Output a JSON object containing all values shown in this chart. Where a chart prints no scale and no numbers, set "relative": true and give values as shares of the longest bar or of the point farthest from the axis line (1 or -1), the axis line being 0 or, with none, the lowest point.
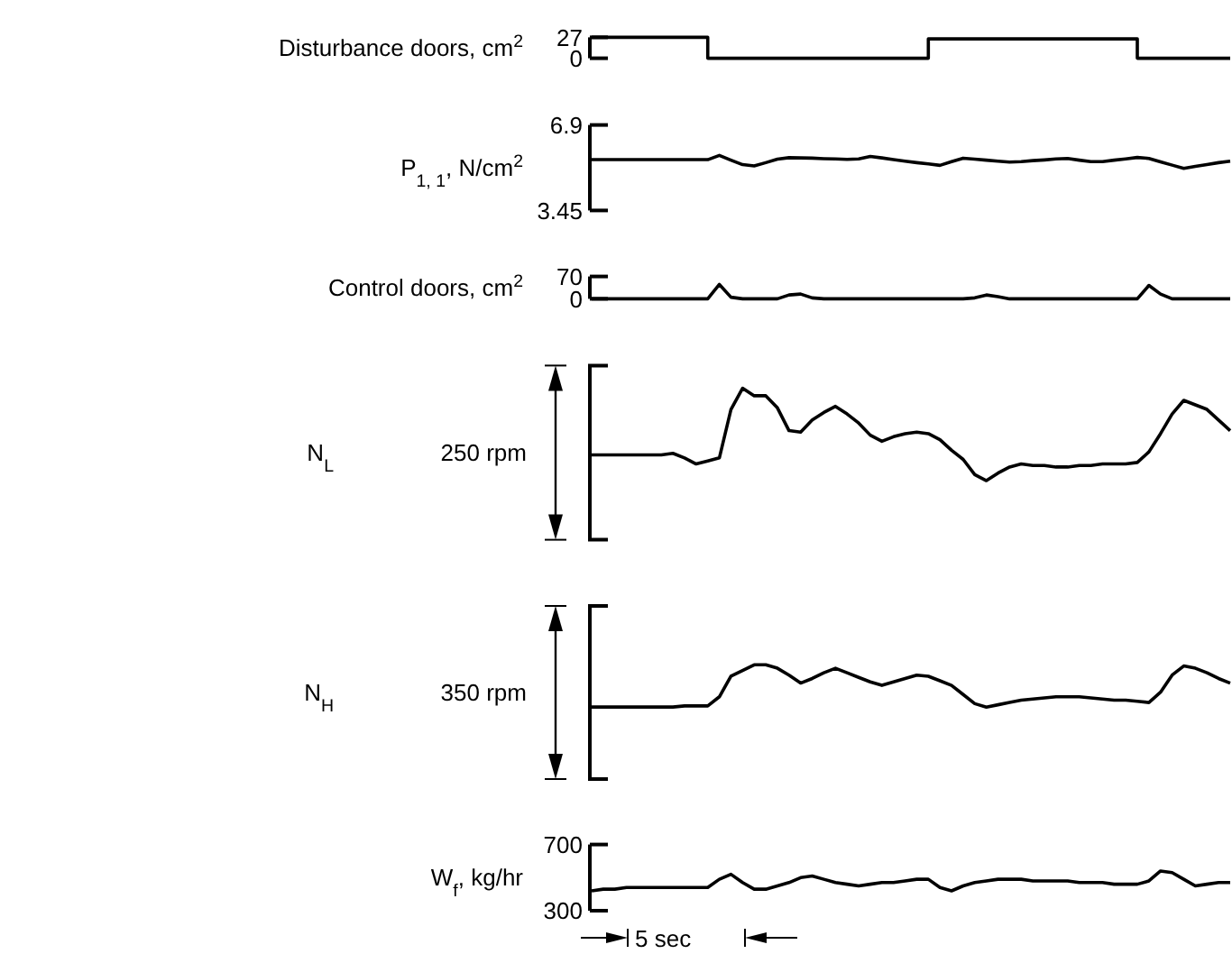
{
  "chart_data": [
    {
      "type": "step",
      "ylabel": "Disturbance doors, cm$^{2}$",
      "color": "#000000",
      "ylim": [
        0,
        27
      ],
      "yticks": [
        0,
        27
      ],
      "tick_labels": "y",
      "categories": [
        null,
        null,
        null,
        null,
        null,
        null,
        null,
        null,
        null,
        null,
        null,
        null,
        null,
        null,
        null,
        null,
        null,
        null,
        null,
        null,
        null,
        null,
        null,
        null,
        null,
        null,
        null,
        null,
        null,
        null,
        null,
        null,
        null,
        null,
        null,
        null,
        null,
        null,
        null,
        null,
        null,
        null,
        null,
        null,
        null,
        null,
        null,
        null,
        null,
        null,
        null,
        null,
        null,
        null,
        null,
        null
      ],
      "values": [
        27,
        27,
        27,
        27,
        27,
        27,
        27,
        27,
        27,
        27,
        0,
        0,
        0,
        0,
        0,
        0,
        0,
        0,
        0,
        0,
        0,
        0,
        0,
        0,
        0,
        0,
        0,
        0,
        0,
        25,
        25,
        25,
        25,
        25,
        25,
        25,
        25,
        25,
        25,
        25,
        25,
        25,
        25,
        25,
        25,
        25,
        25,
        0,
        0,
        0,
        0,
        0,
        0,
        0,
        0,
        0
      ]
    },
    {
      "type": "line",
      "ylabel": "P$_{1, 1}$, N/cm$^{2}$",
      "color": "#000000",
      "ylim": [
        3.45,
        6.9
      ],
      "yticks": [
        3.45,
        6.9
      ],
      "tick_labels": "y",
      "categories": [
        null,
        null,
        null,
        null,
        null,
        null,
        null,
        null,
        null,
        null,
        null,
        null,
        null,
        null,
        null,
        null,
        null,
        null,
        null,
        null,
        null,
        null,
        null,
        null,
        null,
        null,
        null,
        null,
        null,
        null,
        null,
        null,
        null,
        null,
        null,
        null,
        null,
        null,
        null,
        null,
        null,
        null,
        null,
        null,
        null,
        null,
        null,
        null,
        null,
        null,
        null,
        null,
        null,
        null,
        null,
        null
      ],
      "values": [
        5.5,
        5.5,
        5.5,
        5.5,
        5.5,
        5.5,
        5.5,
        5.5,
        5.5,
        5.5,
        5.5,
        5.67,
        5.48,
        5.3,
        5.25,
        5.38,
        5.52,
        5.58,
        5.57,
        5.56,
        5.54,
        5.53,
        5.51,
        5.53,
        5.63,
        5.57,
        5.5,
        5.44,
        5.38,
        5.33,
        5.27,
        5.42,
        5.56,
        5.52,
        5.48,
        5.44,
        5.4,
        5.42,
        5.46,
        5.49,
        5.53,
        5.55,
        5.48,
        5.42,
        5.42,
        5.48,
        5.53,
        5.59,
        5.55,
        5.41,
        5.28,
        5.15,
        5.23,
        5.3,
        5.38,
        5.44
      ]
    },
    {
      "type": "line",
      "ylabel": "Control doors, cm$^{2}$",
      "color": "#000000",
      "ylim": [
        0,
        70
      ],
      "yticks": [
        0,
        70
      ],
      "tick_labels": "y",
      "categories": [
        null,
        null,
        null,
        null,
        null,
        null,
        null,
        null,
        null,
        null,
        null,
        null,
        null,
        null,
        null,
        null,
        null,
        null,
        null,
        null,
        null,
        null,
        null,
        null,
        null,
        null,
        null,
        null,
        null,
        null,
        null,
        null,
        null,
        null,
        null,
        null,
        null,
        null,
        null,
        null,
        null,
        null,
        null,
        null,
        null,
        null,
        null,
        null,
        null,
        null,
        null,
        null,
        null,
        null,
        null,
        null
      ],
      "values": [
        0,
        0,
        0,
        0,
        0,
        0,
        0,
        0,
        0,
        0,
        0,
        45,
        5,
        0,
        0,
        0,
        0,
        12,
        15,
        3,
        0,
        0,
        0,
        0,
        0,
        0,
        0,
        0,
        0,
        0,
        0,
        0,
        0,
        3,
        12,
        7,
        0,
        0,
        0,
        0,
        0,
        0,
        0,
        0,
        0,
        0,
        0,
        0,
        42,
        15,
        0,
        0,
        0,
        0,
        0,
        0
      ]
    },
    {
      "type": "line",
      "ylabel": "N$_{L}$",
      "color": "#000000",
      "relative": true,
      "tick_labels": false,
      "annotations": [
        "250 rpm"
      ],
      "categories": [
        null,
        null,
        null,
        null,
        null,
        null,
        null,
        null,
        null,
        null,
        null,
        null,
        null,
        null,
        null,
        null,
        null,
        null,
        null,
        null,
        null,
        null,
        null,
        null,
        null,
        null,
        null,
        null,
        null,
        null,
        null,
        null,
        null,
        null,
        null,
        null,
        null,
        null,
        null,
        null,
        null,
        null,
        null,
        null,
        null,
        null,
        null,
        null,
        null,
        null,
        null,
        null,
        null,
        null,
        null,
        null
      ],
      "values": [
        0.56,
        0.56,
        0.56,
        0.56,
        0.56,
        0.56,
        0.56,
        0.57,
        0.54,
        0.5,
        0.52,
        0.54,
        0.86,
        1,
        0.95,
        0.95,
        0.87,
        0.72,
        0.71,
        0.79,
        0.84,
        0.88,
        0.83,
        0.77,
        0.69,
        0.65,
        0.68,
        0.7,
        0.71,
        0.7,
        0.66,
        0.59,
        0.53,
        0.43,
        0.39,
        0.44,
        0.48,
        0.5,
        0.49,
        0.49,
        0.48,
        0.48,
        0.49,
        0.49,
        0.5,
        0.5,
        0.5,
        0.51,
        0.58,
        0.7,
        0.83,
        0.92,
        0.89,
        0.86,
        0.79,
        0.72
      ]
    },
    {
      "type": "line",
      "ylabel": "N$_{H}$",
      "color": "#000000",
      "relative": true,
      "tick_labels": false,
      "annotations": [
        "350 rpm"
      ],
      "categories": [
        null,
        null,
        null,
        null,
        null,
        null,
        null,
        null,
        null,
        null,
        null,
        null,
        null,
        null,
        null,
        null,
        null,
        null,
        null,
        null,
        null,
        null,
        null,
        null,
        null,
        null,
        null,
        null,
        null,
        null,
        null,
        null,
        null,
        null,
        null,
        null,
        null,
        null,
        null,
        null,
        null,
        null,
        null,
        null,
        null,
        null,
        null,
        null,
        null,
        null,
        null,
        null,
        null,
        null,
        null,
        null
      ],
      "values": [
        0.63,
        0.63,
        0.63,
        0.63,
        0.63,
        0.63,
        0.63,
        0.63,
        0.64,
        0.64,
        0.64,
        0.72,
        0.9,
        0.95,
        1,
        1,
        0.97,
        0.91,
        0.84,
        0.88,
        0.93,
        0.97,
        0.93,
        0.89,
        0.85,
        0.82,
        0.85,
        0.88,
        0.91,
        0.9,
        0.86,
        0.82,
        0.74,
        0.66,
        0.63,
        0.65,
        0.67,
        0.69,
        0.7,
        0.71,
        0.72,
        0.72,
        0.72,
        0.71,
        0.7,
        0.69,
        0.69,
        0.68,
        0.67,
        0.76,
        0.91,
        0.99,
        0.97,
        0.93,
        0.88,
        0.84
      ]
    },
    {
      "type": "line",
      "ylabel": "W$_{f}$, kg/hr",
      "color": "#000000",
      "ylim": [
        300,
        700
      ],
      "yticks": [
        300,
        700
      ],
      "tick_labels": "y",
      "annotations": [
        "5 sec"
      ],
      "categories": [
        null,
        null,
        null,
        null,
        null,
        null,
        null,
        null,
        null,
        null,
        null,
        null,
        null,
        null,
        null,
        null,
        null,
        null,
        null,
        null,
        null,
        null,
        null,
        null,
        null,
        null,
        null,
        null,
        null,
        null,
        null,
        null,
        null,
        null,
        null,
        null,
        null,
        null,
        null,
        null,
        null,
        null,
        null,
        null,
        null,
        null,
        null,
        null,
        null,
        null,
        null,
        null,
        null,
        null,
        null,
        null
      ],
      "values": [
        420,
        430,
        430,
        440,
        440,
        440,
        440,
        440,
        440,
        440,
        440,
        490,
        520,
        470,
        430,
        430,
        450,
        470,
        500,
        510,
        490,
        470,
        460,
        450,
        460,
        470,
        470,
        480,
        490,
        490,
        440,
        420,
        450,
        470,
        480,
        490,
        490,
        490,
        480,
        480,
        480,
        480,
        470,
        470,
        470,
        460,
        460,
        460,
        480,
        540,
        530,
        490,
        450,
        460,
        470,
        470
      ]
    }
  ]
}
